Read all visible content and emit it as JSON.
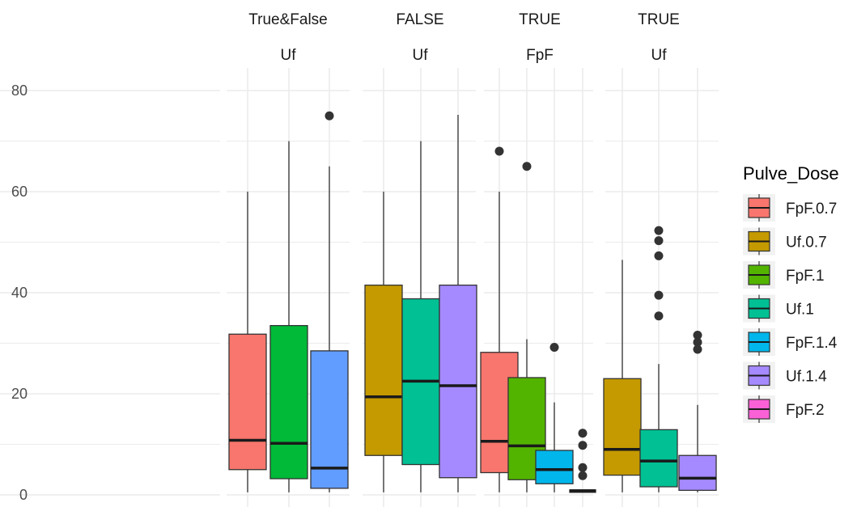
{
  "chart_data": {
    "type": "boxplot",
    "ylim": [
      0,
      82
    ],
    "y_ticks": [
      0,
      20,
      40,
      60,
      80
    ],
    "grid": true,
    "legend_position": "right",
    "legend": {
      "title": "Pulve_Dose",
      "items": [
        {
          "label": "FpF.0.7",
          "color": "#F8766D"
        },
        {
          "label": "Uf.0.7",
          "color": "#C49A00"
        },
        {
          "label": "FpF.1",
          "color": "#53B400"
        },
        {
          "label": "Uf.1",
          "color": "#00C094"
        },
        {
          "label": "FpF.1.4",
          "color": "#00B6EB"
        },
        {
          "label": "Uf.1.4",
          "color": "#A58AFF"
        },
        {
          "label": "FpF.2",
          "color": "#FB61D7"
        }
      ]
    },
    "panels": [
      {
        "strip_top": "True&False",
        "strip_bottom": "Uf",
        "boxes": [
          {
            "color": "#F8766D",
            "min": 0.5,
            "q1": 5,
            "median": 10.8,
            "q3": 31.8,
            "max": 60,
            "outliers": []
          },
          {
            "color": "#00BA38",
            "min": 0.5,
            "q1": 3.2,
            "median": 10.2,
            "q3": 33.5,
            "max": 70,
            "outliers": []
          },
          {
            "color": "#619CFF",
            "min": 0.5,
            "q1": 1.3,
            "median": 5.3,
            "q3": 28.5,
            "max": 65,
            "outliers": [
              75
            ]
          }
        ]
      },
      {
        "strip_top": "FALSE",
        "strip_bottom": "Uf",
        "boxes": [
          {
            "color": "#C49A00",
            "min": 0.5,
            "q1": 7.8,
            "median": 19.4,
            "q3": 41.5,
            "max": 60,
            "outliers": []
          },
          {
            "color": "#00C094",
            "min": 0.5,
            "q1": 6.0,
            "median": 22.5,
            "q3": 38.8,
            "max": 70,
            "outliers": []
          },
          {
            "color": "#A58AFF",
            "min": 0.5,
            "q1": 3.4,
            "median": 21.6,
            "q3": 41.5,
            "max": 75.2,
            "outliers": []
          }
        ]
      },
      {
        "strip_top": "TRUE",
        "strip_bottom": "FpF",
        "boxes": [
          {
            "color": "#F8766D",
            "min": 0.5,
            "q1": 4.4,
            "median": 10.6,
            "q3": 28.2,
            "max": 60,
            "outliers": [
              68
            ]
          },
          {
            "color": "#53B400",
            "min": 0.5,
            "q1": 3.0,
            "median": 9.7,
            "q3": 23.2,
            "max": 30.8,
            "outliers": [
              65
            ]
          },
          {
            "color": "#00B6EB",
            "min": 0.5,
            "q1": 2.2,
            "median": 5.0,
            "q3": 8.8,
            "max": 18.3,
            "outliers": [
              29.2
            ]
          },
          {
            "color": "#FB61D7",
            "min": 0.5,
            "q1": 0.5,
            "median": 0.8,
            "q3": 1.0,
            "max": 1.0,
            "outliers": [
              3.8,
              5.4,
              9.8,
              12.2
            ]
          }
        ]
      },
      {
        "strip_top": "TRUE",
        "strip_bottom": "Uf",
        "boxes": [
          {
            "color": "#C49A00",
            "min": 0.5,
            "q1": 3.9,
            "median": 9.0,
            "q3": 23.0,
            "max": 46.5,
            "outliers": []
          },
          {
            "color": "#00C094",
            "min": 0.5,
            "q1": 1.6,
            "median": 6.7,
            "q3": 12.9,
            "max": 25.9,
            "outliers": [
              35.4,
              39.5,
              47.3,
              50.3,
              52.3
            ]
          },
          {
            "color": "#A58AFF",
            "min": 0.5,
            "q1": 0.9,
            "median": 3.3,
            "q3": 7.8,
            "max": 17.8,
            "outliers": [
              28.8,
              30.2,
              31.6
            ]
          }
        ]
      }
    ]
  }
}
